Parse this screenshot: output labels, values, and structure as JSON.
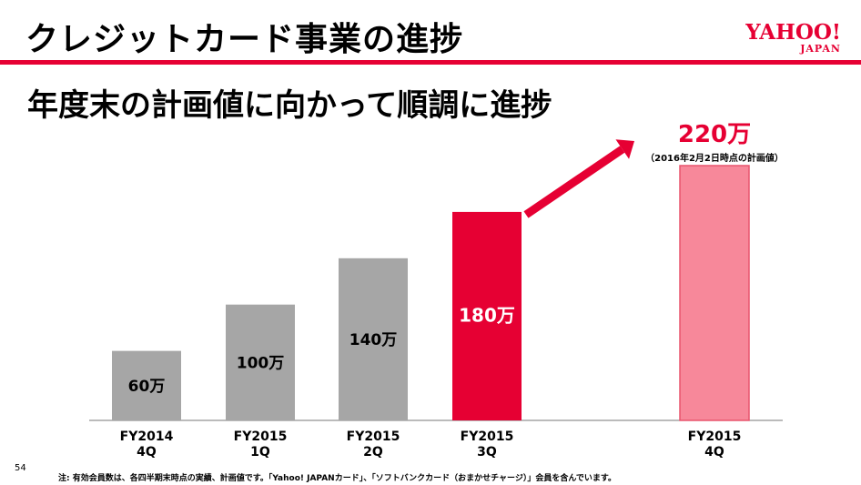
{
  "header": {
    "title": "クレジットカード事業の進捗",
    "logo_text": "YAHOO!",
    "logo_subtext": "JAPAN"
  },
  "subtitle": "年度末の計画値に向かって順調に進捗",
  "colors": {
    "accent": "#e60033",
    "bar_gray": "#a6a6a6",
    "bar_plan": "#f7889a"
  },
  "chart_data": {
    "type": "bar",
    "categories": [
      "FY2014 4Q",
      "FY2015 1Q",
      "FY2015 2Q",
      "FY2015 3Q",
      "FY2015 4Q"
    ],
    "category_lines": [
      [
        "FY2014",
        "4Q"
      ],
      [
        "FY2015",
        "1Q"
      ],
      [
        "FY2015",
        "2Q"
      ],
      [
        "FY2015",
        "3Q"
      ],
      [
        "FY2015",
        "4Q"
      ]
    ],
    "values": [
      60,
      100,
      140,
      180,
      220
    ],
    "value_labels": [
      "60万",
      "100万",
      "140万",
      "180万",
      "220万"
    ],
    "bar_colors": [
      "#a6a6a6",
      "#a6a6a6",
      "#a6a6a6",
      "#e60033",
      "#f7889a"
    ],
    "annotation": "（2016年2月2日時点の計画値）",
    "arrow": "FY2015 3Q → FY2015 4Q",
    "unit": "万",
    "ylim": [
      0,
      220
    ],
    "grid": false,
    "legend": "none"
  },
  "page_number": "54",
  "footnote": "注: 有効会員数は、各四半期末時点の実績、計画値です。「Yahoo! JAPANカード」、「ソフトバンクカード（おまかせチャージ）」会員を含んでいます。"
}
